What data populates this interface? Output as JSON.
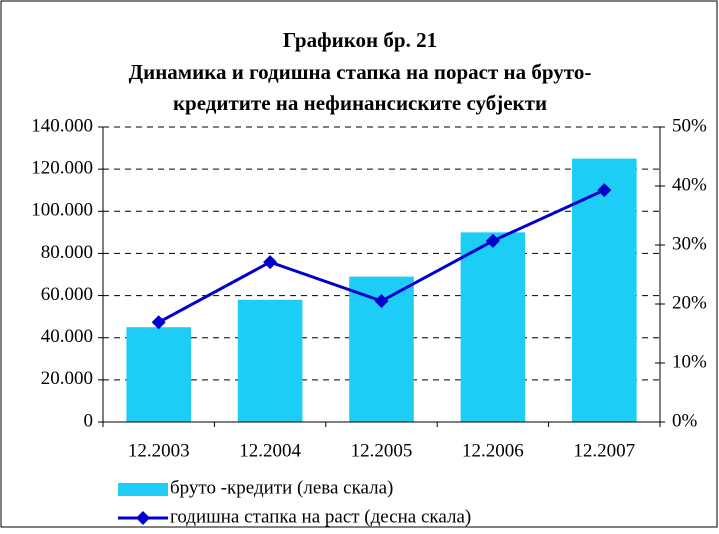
{
  "chart_data": {
    "type": "bar-line",
    "title": [
      "Графикон бр. 21",
      "Динамика и годишна стапка на пораст на бруто-",
      "кредитите на нефинансиските субјекти"
    ],
    "categories": [
      "12.2003",
      "12.2004",
      "12.2005",
      "12.2006",
      "12.2007"
    ],
    "series": [
      {
        "name": "бруто -кредити (лева скала)",
        "color": "#1ecdf6",
        "type": "bar",
        "values": [
          45000,
          58000,
          69000,
          90000,
          125000
        ]
      },
      {
        "name": "годишна стапка на раст (десна скала)",
        "color": "#0000cc",
        "type": "line",
        "axis": "y2",
        "values": [
          16.9,
          27.1,
          20.5,
          30.7,
          39.3
        ]
      }
    ],
    "ylim": [
      0,
      140000
    ],
    "yticks": [
      0,
      {
        "value": 20000,
        "label": "20.000"
      },
      {
        "value": 40000,
        "label": "40.000"
      },
      {
        "value": 60000,
        "label": "60.000"
      },
      {
        "value": 80000,
        "label": "80.000"
      },
      {
        "value": 100000,
        "label": "100.000"
      },
      {
        "value": 120000,
        "label": "120.000"
      },
      {
        "value": 140000,
        "label": "140.000"
      }
    ],
    "y2lim": [
      0,
      50
    ],
    "y2ticks": [
      {
        "value": 0,
        "label": "0%"
      },
      {
        "value": 10,
        "label": "10%"
      },
      {
        "value": 20,
        "label": "20%"
      },
      {
        "value": 30,
        "label": "30%"
      },
      {
        "value": 40,
        "label": "40%"
      },
      {
        "value": 50,
        "label": "50%"
      }
    ],
    "grid": true,
    "legend": "bottom"
  }
}
